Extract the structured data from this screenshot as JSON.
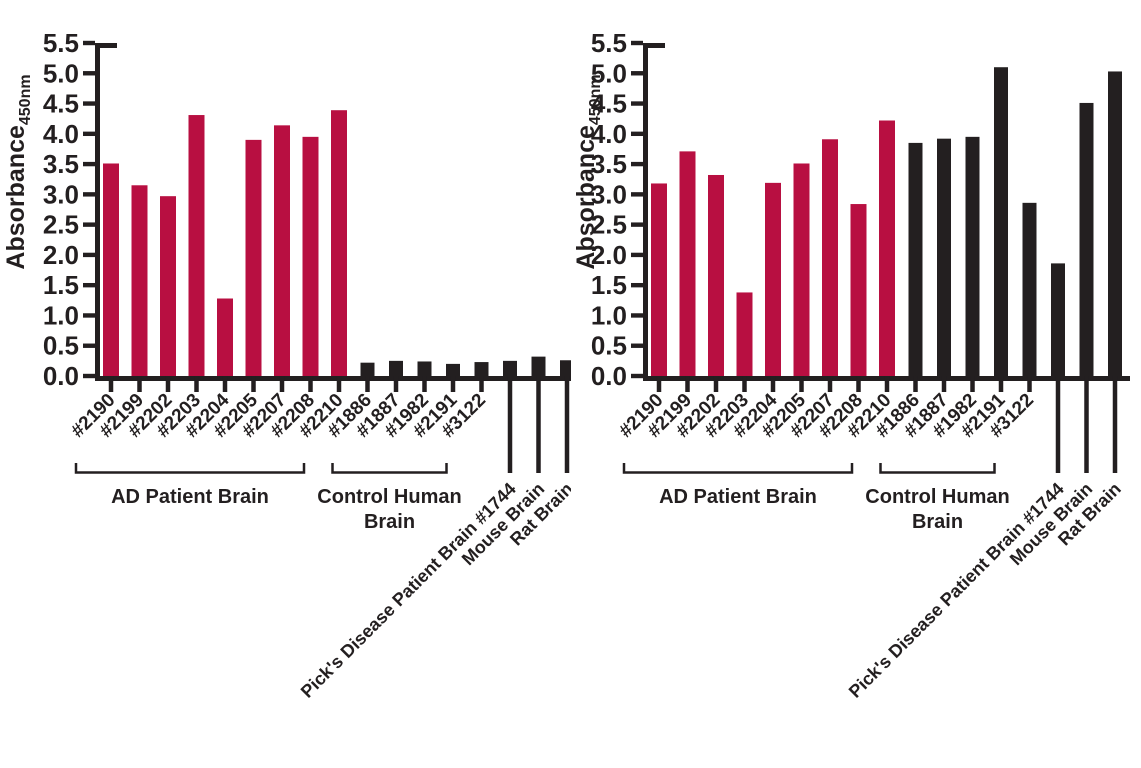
{
  "figure": {
    "background": "#ffffff",
    "description": "Two side-by-side bar charts of Absorbance at 450nm for brain lysate samples"
  },
  "colors": {
    "ad_red": "#B80F41",
    "ink_black": "#231F20"
  },
  "chart_data": [
    {
      "type": "bar",
      "title": "",
      "xlabel": "",
      "ylabel": "Absorbance",
      "ylabel_subscript": "450nm",
      "ylim": [
        0.0,
        5.5
      ],
      "ytick_step": 0.5,
      "ytick_labels": [
        "0.0",
        "0.5",
        "1.0",
        "1.5",
        "2.0",
        "2.5",
        "3.0",
        "3.5",
        "4.0",
        "4.5",
        "5.0",
        "5.5"
      ],
      "grid": false,
      "legend_position": "none",
      "categories": [
        "#2190",
        "#2199",
        "#2202",
        "#2203",
        "#2204",
        "#2205",
        "#2207",
        "#2208",
        "#2210",
        "#1886",
        "#1887",
        "#1982",
        "#2191",
        "#3122",
        "Pick's Disease Patient Brain #1744",
        "Mouse Brain",
        "Rat Brain"
      ],
      "values": [
        3.51,
        3.15,
        2.97,
        4.31,
        1.28,
        3.9,
        4.14,
        3.95,
        4.39,
        0.22,
        0.25,
        0.24,
        0.2,
        0.23,
        0.25,
        0.32,
        0.26
      ],
      "bar_colors": [
        "#B80F41",
        "#B80F41",
        "#B80F41",
        "#B80F41",
        "#B80F41",
        "#B80F41",
        "#B80F41",
        "#B80F41",
        "#B80F41",
        "#231F20",
        "#231F20",
        "#231F20",
        "#231F20",
        "#231F20",
        "#231F20",
        "#231F20",
        "#231F20"
      ],
      "groups": [
        {
          "label_lines": [
            "AD Patient Brain"
          ],
          "start_index": 0,
          "end_index": 8
        },
        {
          "label_lines": [
            "Control Human",
            "Brain"
          ],
          "start_index": 9,
          "end_index": 13
        }
      ],
      "diagonal_label_indices": [
        14,
        15,
        16
      ]
    },
    {
      "type": "bar",
      "title": "",
      "xlabel": "",
      "ylabel": "Absorbance",
      "ylabel_subscript": "450nm",
      "ylim": [
        0.0,
        5.5
      ],
      "ytick_step": 0.5,
      "ytick_labels": [
        "0.0",
        "0.5",
        "1.0",
        "1.5",
        "2.0",
        "2.5",
        "3.0",
        "3.5",
        "4.0",
        "4.5",
        "5.0",
        "5.5"
      ],
      "grid": false,
      "legend_position": "none",
      "categories": [
        "#2190",
        "#2199",
        "#2202",
        "#2203",
        "#2204",
        "#2205",
        "#2207",
        "#2208",
        "#2210",
        "#1886",
        "#1887",
        "#1982",
        "#2191",
        "#3122",
        "Pick's Disease Patient Brain #1744",
        "Mouse Brain",
        "Rat Brain"
      ],
      "values": [
        3.18,
        3.71,
        3.32,
        1.38,
        3.19,
        3.51,
        3.91,
        2.84,
        4.22,
        3.85,
        3.92,
        3.95,
        5.1,
        2.86,
        1.86,
        4.51,
        5.03
      ],
      "bar_colors": [
        "#B80F41",
        "#B80F41",
        "#B80F41",
        "#B80F41",
        "#B80F41",
        "#B80F41",
        "#B80F41",
        "#B80F41",
        "#B80F41",
        "#231F20",
        "#231F20",
        "#231F20",
        "#231F20",
        "#231F20",
        "#231F20",
        "#231F20",
        "#231F20"
      ],
      "groups": [
        {
          "label_lines": [
            "AD Patient Brain"
          ],
          "start_index": 0,
          "end_index": 8
        },
        {
          "label_lines": [
            "Control Human",
            "Brain"
          ],
          "start_index": 9,
          "end_index": 13
        }
      ],
      "diagonal_label_indices": [
        14,
        15,
        16
      ]
    }
  ]
}
